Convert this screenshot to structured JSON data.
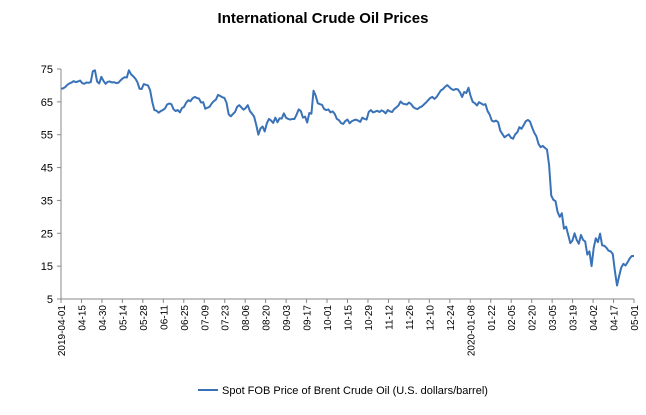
{
  "chart_data": {
    "type": "line",
    "title": "International Crude Oil Prices",
    "xlabel": "",
    "ylabel": "",
    "ylim": [
      5,
      75
    ],
    "yticks": [
      5,
      15,
      25,
      35,
      45,
      55,
      65,
      75
    ],
    "x_tick_labels": [
      "2019-04-01",
      "04-15",
      "04-30",
      "05-14",
      "05-28",
      "06-11",
      "06-25",
      "07-09",
      "07-23",
      "08-06",
      "08-20",
      "09-03",
      "09-17",
      "10-01",
      "10-15",
      "10-29",
      "11-12",
      "11-26",
      "12-10",
      "12-24",
      "2020-01-08",
      "01-22",
      "02-05",
      "02-20",
      "03-05",
      "03-19",
      "04-02",
      "04-17",
      "05-01"
    ],
    "legend_position": "bottom",
    "grid": false,
    "colors": {
      "line": "#3a72b8",
      "axis": "#888888"
    },
    "series": [
      {
        "name": "Spot FOB Price of Brent Crude Oil (U.S. dollars/barrel)",
        "values": [
          69.0,
          69.1,
          69.5,
          70.2,
          70.6,
          70.9,
          71.3,
          71.0,
          71.2,
          71.5,
          70.7,
          70.5,
          70.9,
          70.8,
          71.0,
          74.3,
          74.6,
          71.2,
          70.6,
          72.6,
          71.4,
          70.5,
          71.1,
          71.2,
          70.9,
          71.0,
          70.7,
          70.8,
          71.5,
          72.1,
          72.5,
          72.4,
          74.6,
          73.4,
          72.8,
          72.1,
          71.0,
          69.0,
          68.9,
          70.4,
          70.2,
          70.0,
          68.5,
          65.0,
          62.5,
          62.3,
          61.7,
          62.2,
          62.5,
          63.0,
          64.2,
          64.5,
          64.3,
          62.8,
          62.2,
          62.5,
          61.8,
          63.1,
          63.5,
          64.8,
          65.5,
          65.2,
          66.1,
          66.5,
          66.2,
          66.0,
          64.8,
          64.9,
          62.9,
          63.2,
          63.5,
          64.5,
          65.2,
          65.7,
          67.1,
          66.8,
          66.4,
          66.2,
          64.7,
          61.2,
          60.6,
          61.3,
          61.9,
          63.5,
          64.0,
          63.3,
          62.6,
          63.1,
          64.0,
          62.2,
          61.4,
          60.5,
          58.0,
          55.0,
          56.9,
          57.5,
          56.0,
          58.5,
          59.8,
          59.3,
          58.6,
          60.2,
          58.8,
          60.0,
          59.9,
          61.5,
          60.2,
          59.8,
          59.6,
          59.8,
          59.8,
          61.1,
          62.7,
          62.2,
          60.2,
          60.5,
          58.7,
          61.6,
          61.4,
          68.4,
          66.9,
          64.6,
          64.3,
          64.1,
          62.8,
          62.5,
          62.7,
          61.8,
          62.1,
          61.3,
          59.8,
          59.4,
          58.5,
          58.3,
          59.2,
          59.6,
          58.5,
          59.1,
          59.4,
          59.6,
          59.3,
          58.9,
          60.2,
          59.8,
          59.6,
          61.9,
          62.5,
          61.8,
          62.0,
          62.3,
          61.9,
          62.4,
          62.1,
          61.5,
          62.5,
          62.1,
          61.9,
          62.8,
          63.3,
          63.9,
          65.1,
          64.5,
          64.3,
          64.2,
          64.8,
          64.3,
          63.4,
          63.0,
          62.8,
          63.3,
          63.6,
          64.2,
          64.8,
          65.5,
          66.2,
          66.5,
          65.9,
          66.5,
          67.5,
          68.5,
          68.9,
          69.6,
          70.1,
          69.5,
          68.9,
          68.6,
          68.9,
          68.8,
          67.9,
          66.5,
          68.0,
          67.7,
          69.3,
          66.8,
          65.0,
          64.6,
          63.9,
          64.9,
          64.5,
          64.1,
          64.3,
          62.2,
          61.1,
          59.3,
          59.0,
          59.3,
          58.8,
          56.2,
          55.2,
          54.2,
          54.7,
          55.1,
          54.1,
          53.8,
          55.1,
          55.7,
          57.3,
          56.8,
          57.9,
          59.1,
          59.5,
          59.0,
          57.2,
          55.6,
          54.5,
          52.2,
          51.2,
          51.6,
          51.0,
          50.5,
          45.7,
          36.5,
          35.2,
          34.8,
          31.5,
          30.0,
          31.1,
          26.4,
          27.0,
          24.5,
          22.0,
          22.8,
          25.0,
          23.0,
          21.8,
          24.5,
          23.0,
          22.5,
          18.5,
          19.5,
          15.0,
          20.5,
          23.5,
          22.3,
          24.9,
          21.3,
          21.2,
          20.6,
          19.7,
          19.5,
          18.7,
          13.5,
          9.1,
          12.0,
          14.6,
          15.7,
          15.2,
          16.2,
          17.4,
          18.1,
          18.1
        ]
      }
    ]
  }
}
